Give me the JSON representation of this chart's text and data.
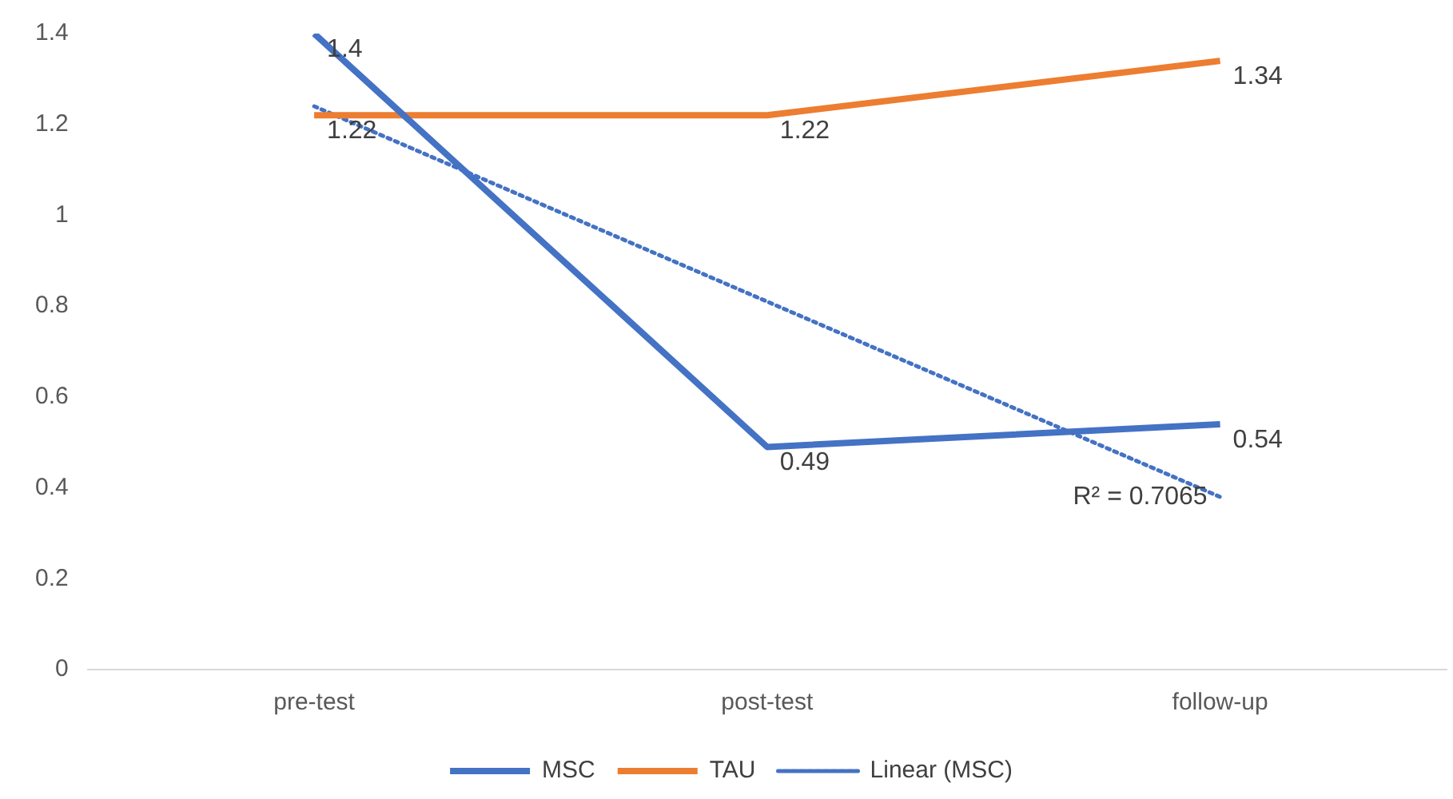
{
  "chart_data": {
    "type": "line",
    "categories": [
      "pre-test",
      "post-test",
      "follow-up"
    ],
    "series": [
      {
        "name": "MSC",
        "color": "#4472c4",
        "values": [
          1.4,
          0.49,
          0.54
        ],
        "value_labels": [
          "1.4",
          "0.49",
          "0.54"
        ]
      },
      {
        "name": "TAU",
        "color": "#ed7d31",
        "values": [
          1.22,
          1.22,
          1.34
        ],
        "value_labels": [
          "1.22",
          "1.22",
          "1.34"
        ]
      },
      {
        "name": "Linear (MSC)",
        "color": "#4472c4",
        "values": [
          1.24,
          0.81,
          0.38
        ],
        "line_style": "dotted"
      }
    ],
    "ylim": [
      0,
      1.4
    ],
    "yticks": [
      0,
      0.2,
      0.4,
      0.6,
      0.8,
      1,
      1.2,
      1.4
    ],
    "grid": false,
    "legend": "bottom",
    "marker": "none",
    "annotations": [
      {
        "text": "R² = 0.7065",
        "x": "follow-up",
        "y": 0.38
      }
    ]
  }
}
